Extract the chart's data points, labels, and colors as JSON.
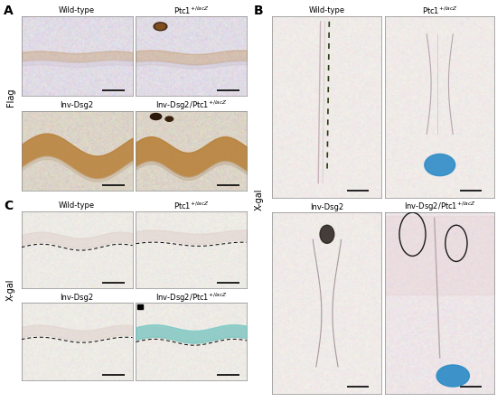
{
  "panel_A_label": "A",
  "panel_B_label": "B",
  "panel_C_label": "C",
  "side_label_A": "Flag",
  "side_label_B": "X-gal",
  "side_label_C": "X-gal",
  "panel_A_titles": [
    "Wild-type",
    "Ptc1$^{+/lacZ}$",
    "Inv-Dsg2",
    "Inv-Dsg2/Ptc1$^{+/lacZ}$"
  ],
  "panel_B_titles": [
    "Wild-type",
    "Ptc1$^{+/lacZ}$",
    "Inv-Dsg2",
    "Inv-Dsg2/Ptc1$^{+/lacZ}$"
  ],
  "panel_C_titles": [
    "Wild-type",
    "Ptc1$^{+/lacZ}$",
    "Inv-Dsg2",
    "Inv-Dsg2/Ptc1$^{+/lacZ}$"
  ],
  "figure_bg": "#ffffff",
  "title_fontsize": 6.0,
  "panel_label_fontsize": 10,
  "side_label_fontsize": 7.0,
  "border_color": "#888888"
}
